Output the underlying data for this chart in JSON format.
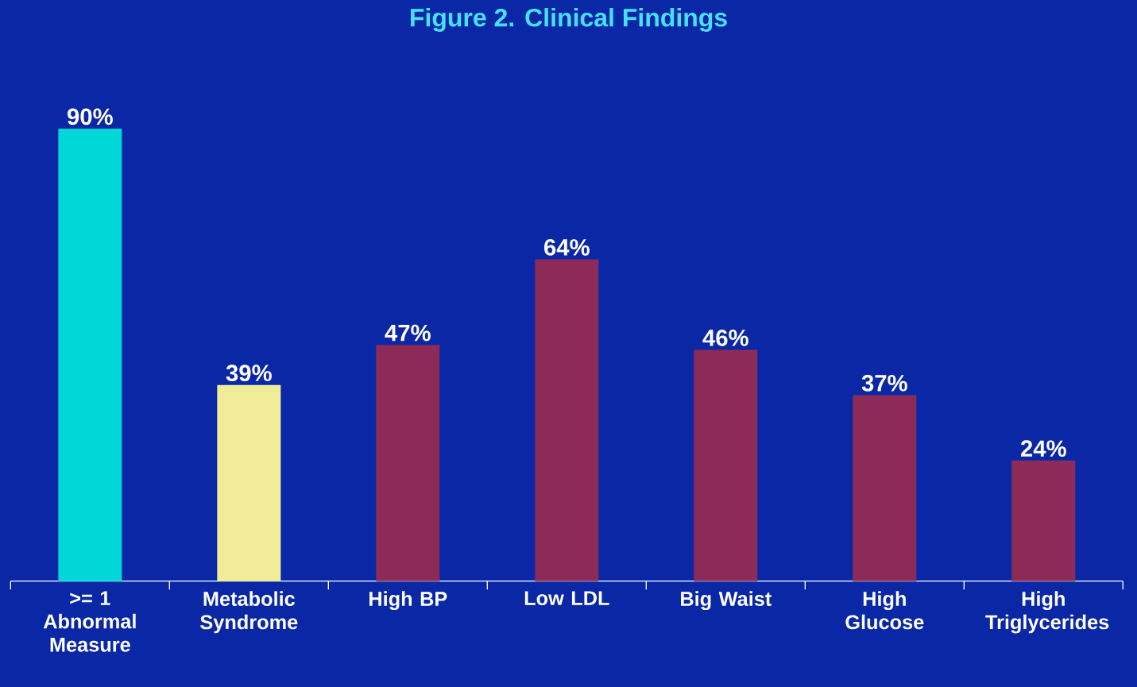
{
  "chart_data": {
    "type": "bar",
    "title": "Figure 2.  Clinical Findings",
    "categories": [
      ">= 1 Abnormal Measure",
      "Metabolic Syndrome",
      "High BP",
      "Low LDL",
      "Big Waist",
      "High Glucose",
      "High Triglycerides"
    ],
    "values": [
      90,
      39,
      47,
      64,
      46,
      37,
      24
    ],
    "colors": [
      "#00d8d8",
      "#f0ec98",
      "#8c2a58",
      "#8c2a58",
      "#8c2a58",
      "#8c2a58",
      "#8c2a58"
    ],
    "value_labels": [
      "90%",
      "39%",
      "47%",
      "64%",
      "46%",
      "37%",
      "24%"
    ]
  }
}
